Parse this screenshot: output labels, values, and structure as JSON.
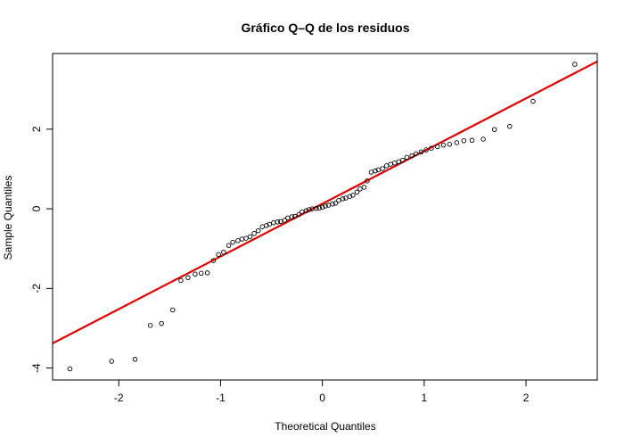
{
  "chart_data": {
    "type": "scatter",
    "title": "Gráfico Q–Q de los residuos",
    "xlabel": "Theoretical Quantiles",
    "ylabel": "Sample Quantiles",
    "xlim": [
      -2.65,
      2.7
    ],
    "ylim": [
      -4.3,
      3.9
    ],
    "xticks": [
      -2,
      -1,
      0,
      1,
      2
    ],
    "yticks": [
      -4,
      -2,
      0,
      2
    ],
    "grid": false,
    "legend": "none",
    "colors": {
      "points": "#000000",
      "line": "#e00000",
      "frame": "#000000"
    },
    "reference_line": {
      "label": "",
      "x": [
        -2.65,
        2.7
      ],
      "y": [
        -3.38,
        3.7
      ]
    },
    "series": [
      {
        "x": [
          -2.48,
          -2.07,
          -1.84,
          -1.69,
          -1.58,
          -1.47,
          -1.39,
          -1.32,
          -1.25,
          -1.19,
          -1.13,
          -1.07,
          -1.02,
          -0.97,
          -0.92,
          -0.88,
          -0.83,
          -0.79,
          -0.75,
          -0.71,
          -0.67,
          -0.63,
          -0.59,
          -0.55,
          -0.52,
          -0.48,
          -0.44,
          -0.41,
          -0.37,
          -0.34,
          -0.3,
          -0.27,
          -0.23,
          -0.2,
          -0.16,
          -0.13,
          -0.1,
          -0.06,
          -0.03,
          0.0,
          0.03,
          0.06,
          0.1,
          0.13,
          0.16,
          0.2,
          0.23,
          0.27,
          0.3,
          0.34,
          0.37,
          0.41,
          0.44,
          0.48,
          0.52,
          0.55,
          0.59,
          0.63,
          0.67,
          0.71,
          0.75,
          0.79,
          0.83,
          0.88,
          0.92,
          0.97,
          1.02,
          1.07,
          1.13,
          1.19,
          1.25,
          1.32,
          1.39,
          1.47,
          1.58,
          1.69,
          1.84,
          2.07,
          2.48
        ],
        "y": [
          -4.02,
          -3.83,
          -3.78,
          -2.93,
          -2.88,
          -2.54,
          -1.8,
          -1.73,
          -1.64,
          -1.62,
          -1.61,
          -1.3,
          -1.15,
          -1.09,
          -0.92,
          -0.84,
          -0.8,
          -0.76,
          -0.74,
          -0.7,
          -0.62,
          -0.55,
          -0.45,
          -0.42,
          -0.39,
          -0.35,
          -0.33,
          -0.32,
          -0.29,
          -0.23,
          -0.2,
          -0.19,
          -0.14,
          -0.08,
          -0.05,
          -0.02,
          0.0,
          0.01,
          0.02,
          0.04,
          0.07,
          0.09,
          0.12,
          0.14,
          0.21,
          0.25,
          0.27,
          0.31,
          0.34,
          0.42,
          0.5,
          0.54,
          0.7,
          0.92,
          0.95,
          0.98,
          1.01,
          1.08,
          1.12,
          1.15,
          1.18,
          1.22,
          1.29,
          1.33,
          1.38,
          1.43,
          1.48,
          1.52,
          1.56,
          1.6,
          1.62,
          1.66,
          1.71,
          1.72,
          1.75,
          1.99,
          2.07,
          2.7,
          3.63
        ]
      }
    ]
  }
}
